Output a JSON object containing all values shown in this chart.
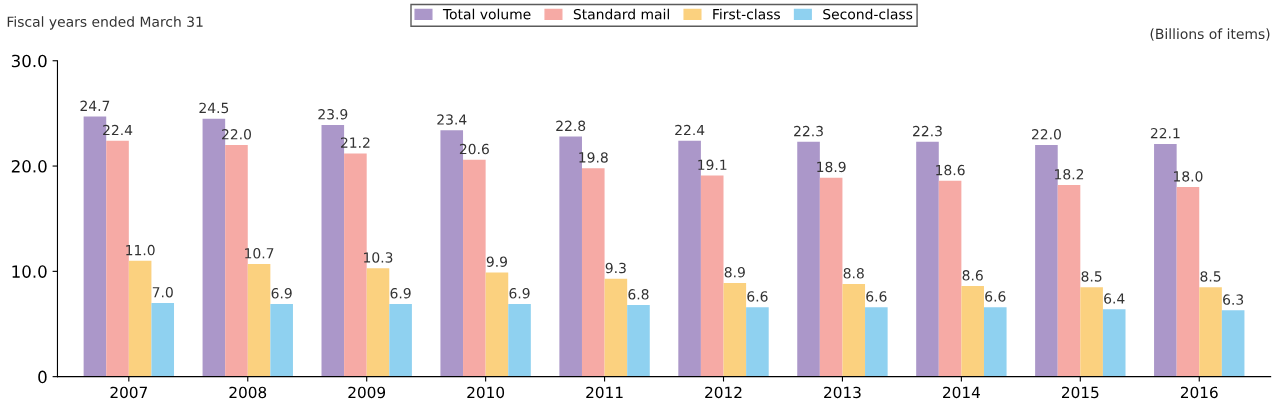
{
  "chart_data": {
    "type": "bar",
    "annotations": [
      "Fiscal years ended March 31",
      "(Billions of items)"
    ],
    "categories": [
      "2007",
      "2008",
      "2009",
      "2010",
      "2011",
      "2012",
      "2013",
      "2014",
      "2015",
      "2016"
    ],
    "series": [
      {
        "name": "Total volume",
        "color": "#ab97c9",
        "values": [
          24.7,
          24.5,
          23.9,
          23.4,
          22.8,
          22.4,
          22.3,
          22.3,
          22.0,
          22.1
        ],
        "value_labels": [
          "24.7",
          "24.5",
          "23.9",
          "23.4",
          "22.8",
          "22.4",
          "22.3",
          "22.3",
          "22.0",
          "22.1"
        ]
      },
      {
        "name": "Standard mail",
        "color": "#f6aaa5",
        "values": [
          22.4,
          22.0,
          21.2,
          20.6,
          19.8,
          19.1,
          18.9,
          18.6,
          18.2,
          18.0
        ],
        "value_labels": [
          "22.4",
          "22.0",
          "21.2",
          "20.6",
          "19.8",
          "19.1",
          "18.9",
          "18.6",
          "18.2",
          "18.0"
        ]
      },
      {
        "name": "First-class",
        "color": "#fbd17f",
        "values": [
          11.0,
          10.7,
          10.3,
          9.9,
          9.3,
          8.9,
          8.8,
          8.6,
          8.5,
          8.5
        ],
        "value_labels": [
          "11.0",
          "10.7",
          "10.3",
          "9.9",
          "9.3",
          "8.9",
          "8.8",
          "8.6",
          "8.5",
          "8.5"
        ]
      },
      {
        "name": "Second-class",
        "color": "#8fd1f0",
        "values": [
          7.0,
          6.9,
          6.9,
          6.9,
          6.8,
          6.6,
          6.6,
          6.6,
          6.4,
          6.3
        ],
        "value_labels": [
          "7.0",
          "6.9",
          "6.9",
          "6.9",
          "6.8",
          "6.6",
          "6.6",
          "6.6",
          "6.4",
          "6.3"
        ]
      }
    ],
    "ylim": [
      0,
      30
    ],
    "yticks": [
      0,
      {
        "value": 10,
        "label": "10.0"
      },
      {
        "value": 20,
        "label": "20.0"
      },
      {
        "value": 30,
        "label": "30.0"
      }
    ],
    "legend": "top",
    "grid": false
  }
}
